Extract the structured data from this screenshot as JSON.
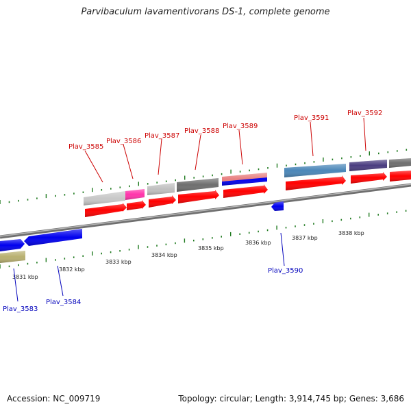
{
  "title": "Parvibaculum lavamentivorans DS-1, complete genome",
  "footer": {
    "accession": "Accession: NC_009719",
    "stats": "Topology: circular; Length: 3,914,745 bp; Genes: 3,686"
  },
  "colors": {
    "backbone": "#8a8a8a",
    "tick": "#1f7a1f",
    "cds": "#ff0000",
    "upper_label": "#cc0000",
    "lower_label": "#0000bb"
  },
  "kbp_labels": [
    "3831 kbp",
    "3832 kbp",
    "3833 kbp",
    "3834 kbp",
    "3835 kbp",
    "3836 kbp",
    "3837 kbp",
    "3838 kbp"
  ],
  "upper_genes": [
    {
      "label": "Plav_3585",
      "color": "#c8c8c8"
    },
    {
      "label": "Plav_3586",
      "color": "#ff33aa"
    },
    {
      "label": "Plav_3587",
      "color": "#c0c0c0"
    },
    {
      "label": "Plav_3588",
      "color": "#6e6e6e"
    },
    {
      "label": "Plav_3589",
      "color": "#e88080"
    },
    {
      "label": "Plav_3591",
      "color": "#4a86b8"
    },
    {
      "label": "Plav_3592",
      "color": "#4a3d80"
    }
  ],
  "lower_genes": [
    {
      "label": "Plav_3583",
      "color": "#0000ee"
    },
    {
      "label": "Plav_3584",
      "color": "#0000ee"
    },
    {
      "label": "Plav_3590",
      "color": "#0000ee"
    }
  ]
}
